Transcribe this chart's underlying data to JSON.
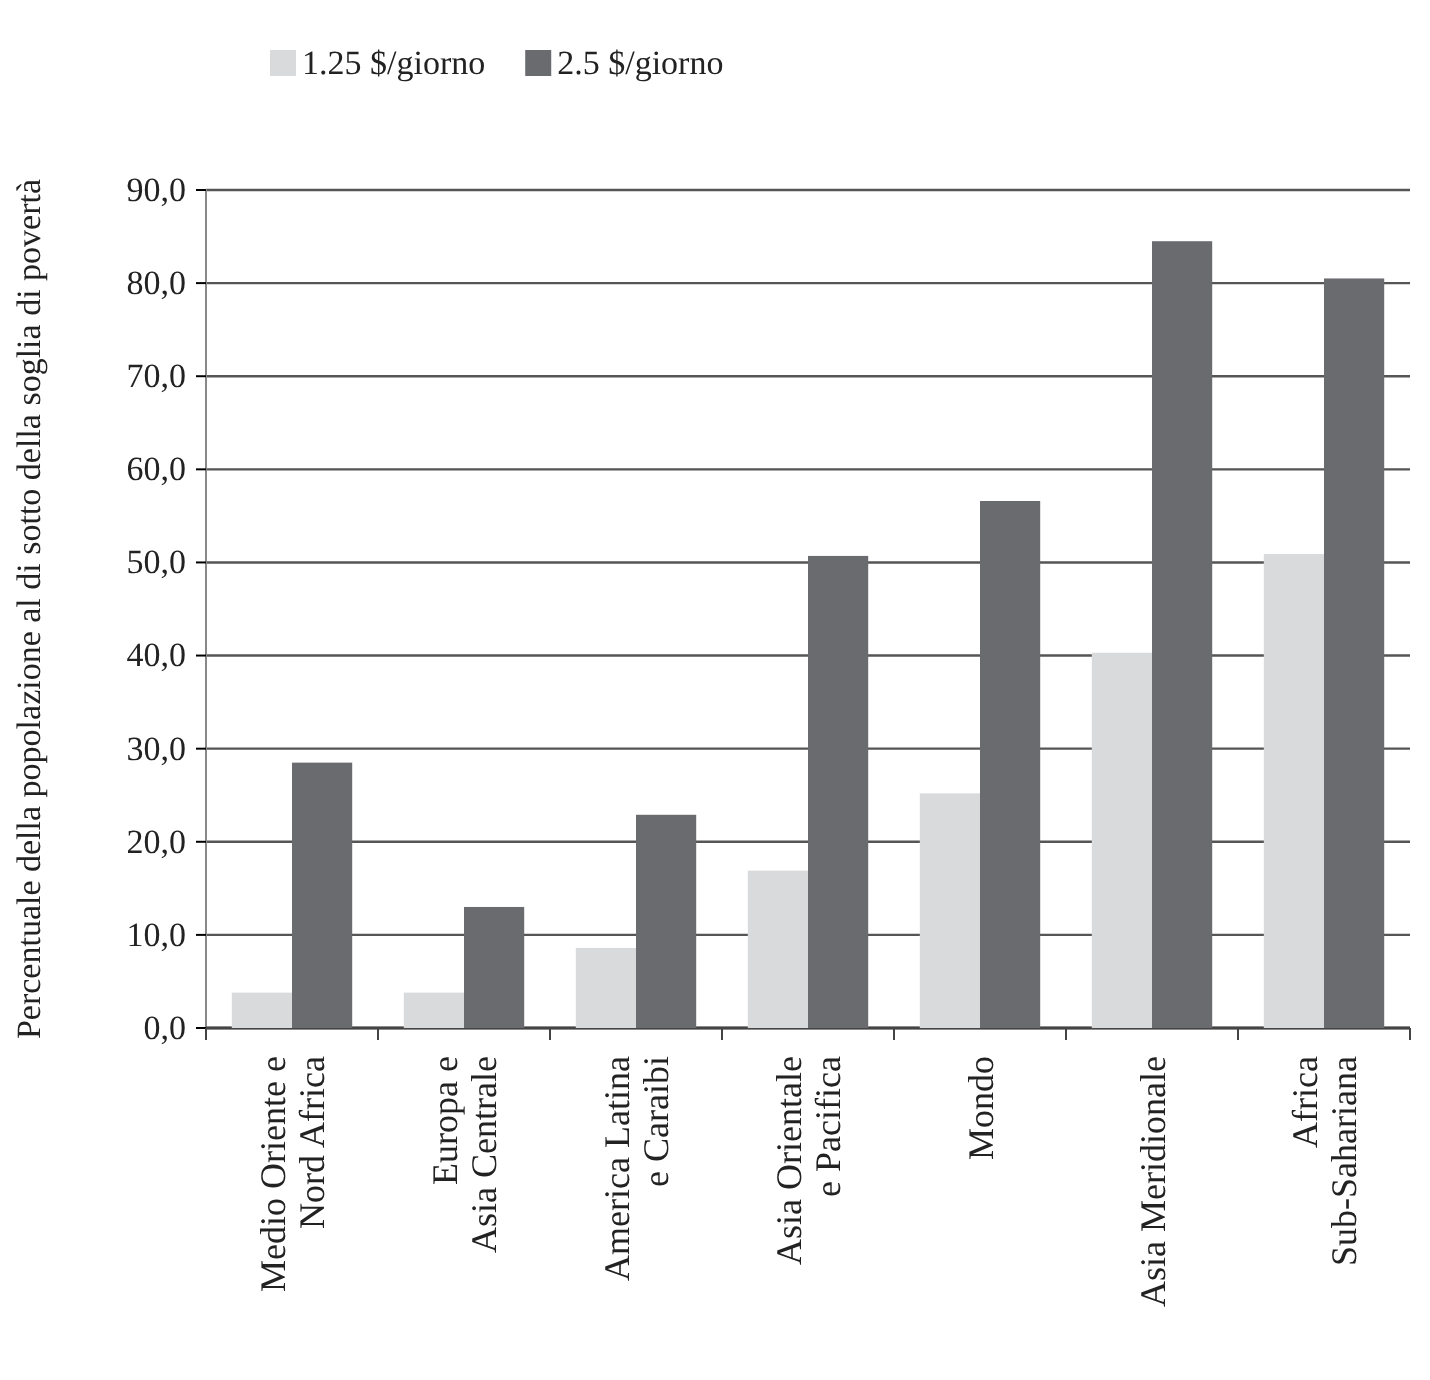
{
  "chart_data": {
    "type": "bar",
    "ylabel": "Percentuale della popolazione al di sotto della soglia di povertà",
    "categories": [
      "Medio Oriente e\nNord Africa",
      "Europa e\nAsia Centrale",
      "America Latina\ne Caraibi",
      "Asia Orientale\ne Pacifica",
      "Mondo",
      "Asia Meridionale",
      "Africa\nSub-Sahariana"
    ],
    "series": [
      {
        "name": "1.25 $/giorno",
        "color": "#d9dadb",
        "values": [
          3.8,
          3.8,
          8.6,
          16.9,
          25.2,
          40.3,
          50.9
        ]
      },
      {
        "name": "2.5 $/giorno",
        "color": "#6a6b6f",
        "values": [
          28.5,
          13.0,
          22.9,
          50.7,
          56.6,
          84.5,
          80.5
        ]
      }
    ],
    "ylim": [
      0,
      90
    ],
    "yticks": [
      {
        "value": 0,
        "label": "0,0"
      },
      {
        "value": 10,
        "label": "10,0"
      },
      {
        "value": 20,
        "label": "20,0"
      },
      {
        "value": 30,
        "label": "30,0"
      },
      {
        "value": 40,
        "label": "40,0"
      },
      {
        "value": 50,
        "label": "50,0"
      },
      {
        "value": 60,
        "label": "60,0"
      },
      {
        "value": 70,
        "label": "70,0"
      },
      {
        "value": 80,
        "label": "80,0"
      },
      {
        "value": 90,
        "label": "90,0"
      }
    ],
    "grid": "y",
    "legend": "top left"
  }
}
